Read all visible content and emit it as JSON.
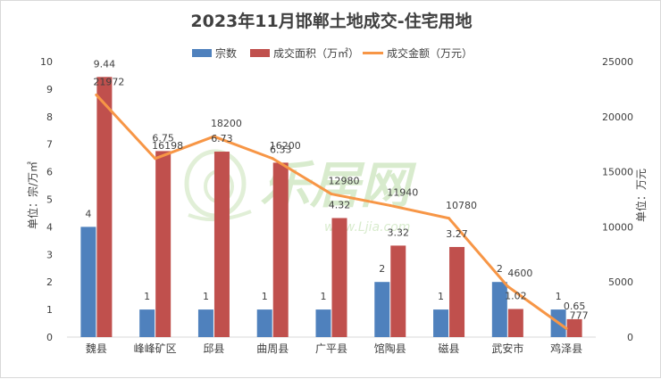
{
  "chart_data": {
    "type": "bar",
    "title": "2023年11月邯郸土地成交-住宅用地",
    "categories": [
      "魏县",
      "峰峰矿区",
      "邱县",
      "曲周县",
      "广平县",
      "馆陶县",
      "磁县",
      "武安市",
      "鸡泽县"
    ],
    "series": [
      {
        "name": "宗数",
        "type": "bar",
        "axis": "left",
        "color": "#4f81bd",
        "values": [
          4,
          1,
          1,
          1,
          1,
          2,
          1,
          2,
          1
        ],
        "labels": [
          "4",
          "1",
          "1",
          "1",
          "1",
          "2",
          "1",
          "2",
          "1"
        ]
      },
      {
        "name": "成交面积（万㎡）",
        "type": "bar",
        "axis": "left",
        "color": "#c0504d",
        "values": [
          9.44,
          6.75,
          6.73,
          6.33,
          4.32,
          3.32,
          3.27,
          1.02,
          0.65
        ],
        "labels": [
          "9.44",
          "6.75",
          "6.73",
          "6.33",
          "4.32",
          "3.32",
          "3.27",
          "1.02",
          "0.65"
        ]
      },
      {
        "name": "成交金额（万元）",
        "type": "line",
        "axis": "right",
        "color": "#f79646",
        "values": [
          21972,
          16198,
          18200,
          16200,
          12980,
          11940,
          10780,
          4600,
          777
        ],
        "labels": [
          "21972",
          "16198",
          "18200",
          "16200",
          "12980",
          "11940",
          "10780",
          "4600",
          "777"
        ]
      }
    ],
    "ylabel": "单位：宗/万㎡",
    "y2label": "单位：万元",
    "ylim": [
      0,
      10
    ],
    "y2lim": [
      0,
      25000
    ],
    "yticks": [
      "0",
      "1",
      "2",
      "3",
      "4",
      "5",
      "6",
      "7",
      "8",
      "9",
      "10"
    ],
    "y2ticks": [
      "0",
      "5000",
      "10000",
      "15000",
      "20000",
      "25000"
    ],
    "legend_position": "top",
    "grid": false
  },
  "watermark": {
    "main": "乐居网",
    "sub": "www.Ljia.com",
    "color": "#b9dca5"
  }
}
